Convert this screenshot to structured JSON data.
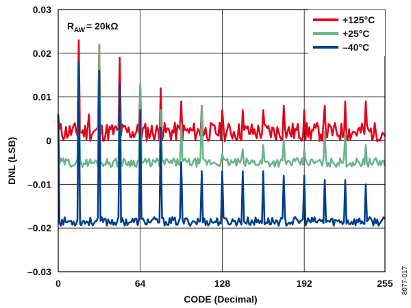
{
  "chart_data": {
    "type": "line",
    "xlabel": "CODE (Decimal)",
    "ylabel": "DNL (LSB)",
    "xlim": [
      0,
      255
    ],
    "ylim": [
      -0.03,
      0.03
    ],
    "x_ticks": [
      0,
      64,
      128,
      192,
      255
    ],
    "x_tick_labels": [
      "0",
      "64",
      "128",
      "192",
      "255"
    ],
    "y_ticks": [
      0.03,
      0.02,
      0.01,
      0,
      -0.01,
      -0.02,
      -0.03
    ],
    "y_tick_labels": [
      "0.03",
      "0.02",
      "0.01",
      "0",
      "–0.01",
      "–0.02",
      "–0.03"
    ],
    "grid": true,
    "legend_position": "top-right",
    "series": [
      {
        "name": "+125°C",
        "color": "#e2001a",
        "baseline": 0.002,
        "spike_codes": [
          0,
          16,
          24,
          32,
          48,
          64,
          80,
          96,
          112,
          128,
          144,
          160,
          176,
          192,
          208,
          224,
          240
        ],
        "spike_values": [
          0.006,
          0.023,
          0.006,
          0.022,
          0.019,
          0.013,
          0.012,
          0.009,
          0.008,
          0.007,
          0.007,
          0.007,
          0.008,
          0.007,
          0.008,
          0.009,
          0.009
        ]
      },
      {
        "name": "+25°C",
        "color": "#6bb38a",
        "baseline": -0.005,
        "spike_codes": [
          0,
          16,
          32,
          48,
          64,
          80,
          96,
          112,
          128,
          144,
          160,
          176,
          192,
          208,
          224,
          240
        ],
        "spike_values": [
          0.005,
          0.018,
          0.022,
          0.012,
          0.013,
          0.007,
          0.004,
          0.008,
          -0.003,
          -0.002,
          -0.001,
          0.0,
          -0.002,
          0.002,
          0.002,
          -0.001
        ]
      },
      {
        "name": "–40°C",
        "color": "#003f8a",
        "baseline": -0.0185,
        "spike_codes": [
          0,
          16,
          32,
          48,
          64,
          80,
          96,
          112,
          128,
          144,
          160,
          176,
          192,
          208,
          224,
          240
        ],
        "spike_values": [
          0.006,
          0.018,
          0.016,
          0.013,
          0.007,
          0.003,
          -0.005,
          -0.007,
          -0.007,
          -0.007,
          -0.007,
          -0.008,
          -0.008,
          -0.009,
          -0.009,
          -0.01
        ]
      }
    ]
  },
  "annotation": {
    "main": "R",
    "subscript": "AW",
    "rest": " = 20kΩ"
  },
  "figure_id": "8077-017"
}
